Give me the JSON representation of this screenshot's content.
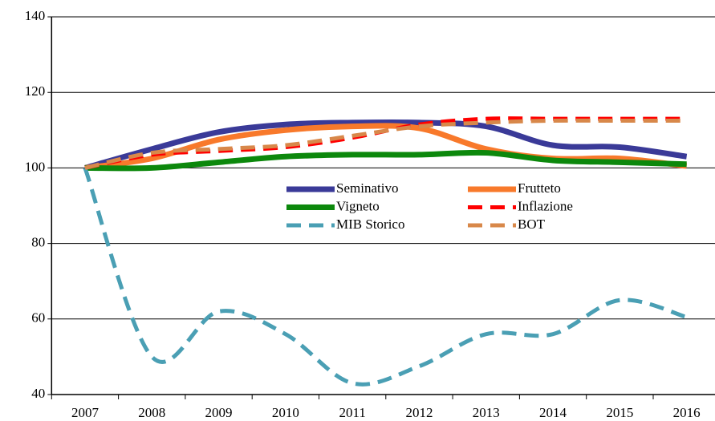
{
  "chart_data": {
    "type": "line",
    "categories": [
      "2007",
      "2008",
      "2009",
      "2010",
      "2011",
      "2012",
      "2013",
      "2014",
      "2015",
      "2016"
    ],
    "series": [
      {
        "name": "Seminativo",
        "color": "#3a3a98",
        "dash": false,
        "values": [
          100,
          105,
          109.5,
          111.5,
          112,
          112,
          111,
          106,
          105.5,
          103
        ]
      },
      {
        "name": "Frutteto",
        "color": "#f8792b",
        "dash": false,
        "values": [
          100,
          102.5,
          107.5,
          110,
          111,
          110.5,
          105,
          102.5,
          102.5,
          100.5
        ]
      },
      {
        "name": "Vigneto",
        "color": "#0c880c",
        "dash": false,
        "values": [
          100,
          100,
          101.5,
          103,
          103.5,
          103.5,
          104,
          102,
          101.5,
          101
        ]
      },
      {
        "name": "Inflazione",
        "color": "#ff0000",
        "dash": true,
        "values": [
          100,
          103.5,
          104.5,
          105.5,
          108,
          111.5,
          113,
          113,
          113,
          113
        ]
      },
      {
        "name": "MIB Storico",
        "color": "#4a9fb4",
        "dash": true,
        "values": [
          100,
          50,
          62,
          56,
          43,
          47.5,
          56,
          56,
          65,
          60.5
        ]
      },
      {
        "name": "BOT",
        "color": "#d8884a",
        "dash": true,
        "values": [
          100,
          104,
          105,
          106,
          108.5,
          111,
          112,
          112.5,
          112.5,
          112.5
        ]
      }
    ],
    "ylim": [
      40,
      140
    ],
    "yticks": [
      40,
      60,
      80,
      100,
      120,
      140
    ],
    "grid": true
  }
}
